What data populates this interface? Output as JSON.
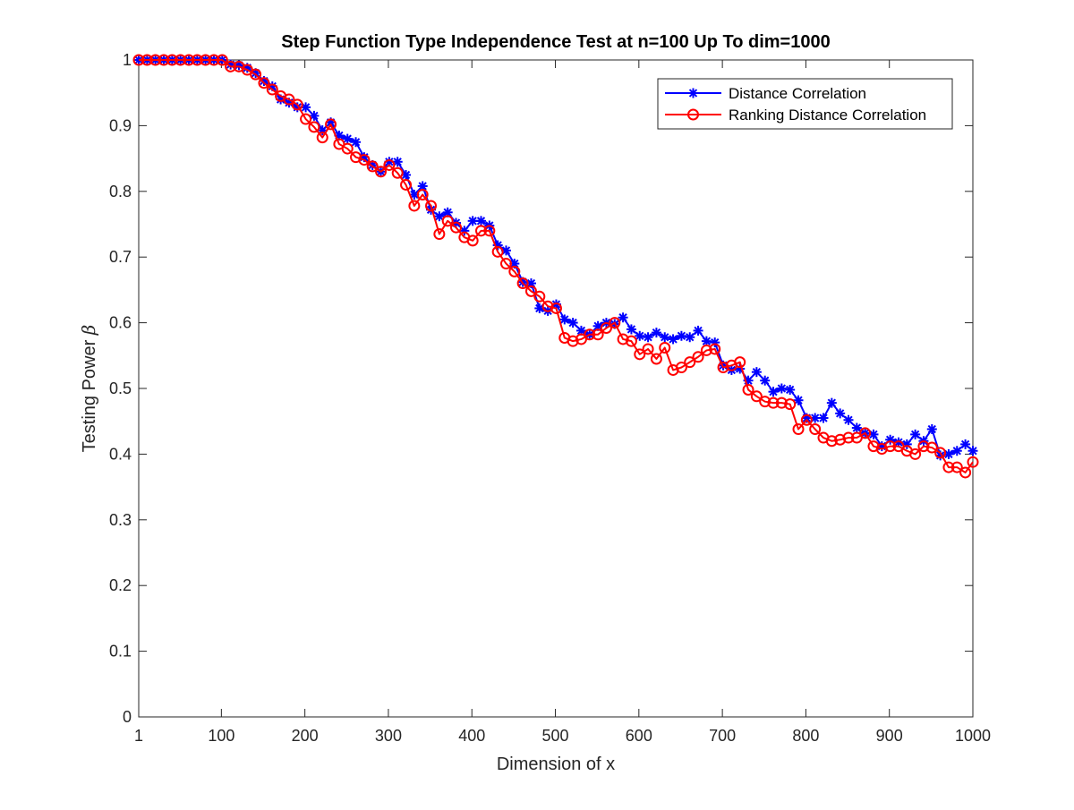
{
  "chart_data": {
    "type": "line",
    "title": "Step Function Type Independence Test at n=100 Up To dim=1000",
    "xlabel": "Dimension of x",
    "ylabel": "Testing Power ",
    "ylabel_symbol": "β",
    "xlim": [
      1,
      1000
    ],
    "ylim": [
      0,
      1
    ],
    "x_ticks": [
      1,
      100,
      200,
      300,
      400,
      500,
      600,
      700,
      800,
      900,
      1000
    ],
    "x_tick_labels": [
      "1",
      "100",
      "200",
      "300",
      "400",
      "500",
      "600",
      "700",
      "800",
      "900",
      "1000"
    ],
    "y_ticks": [
      0,
      0.1,
      0.2,
      0.3,
      0.4,
      0.5,
      0.6,
      0.7,
      0.8,
      0.9,
      1
    ],
    "y_tick_labels": [
      "0",
      "0.1",
      "0.2",
      "0.3",
      "0.4",
      "0.5",
      "0.6",
      "0.7",
      "0.8",
      "0.9",
      "1"
    ],
    "grid": false,
    "legend_position": "top-right",
    "x": [
      1,
      11,
      21,
      31,
      41,
      51,
      61,
      71,
      81,
      91,
      101,
      111,
      121,
      131,
      141,
      151,
      161,
      171,
      181,
      191,
      201,
      211,
      221,
      231,
      241,
      251,
      261,
      271,
      281,
      291,
      301,
      311,
      321,
      331,
      341,
      351,
      361,
      371,
      381,
      391,
      401,
      411,
      421,
      431,
      441,
      451,
      461,
      471,
      481,
      491,
      501,
      511,
      521,
      531,
      541,
      551,
      561,
      571,
      581,
      591,
      601,
      611,
      621,
      631,
      641,
      651,
      661,
      671,
      681,
      691,
      701,
      711,
      721,
      731,
      741,
      751,
      761,
      771,
      781,
      791,
      801,
      811,
      821,
      831,
      841,
      851,
      861,
      871,
      881,
      891,
      901,
      911,
      921,
      931,
      941,
      951,
      961,
      971,
      981,
      991,
      1000
    ],
    "series": [
      {
        "name": "Distance Correlation",
        "color": "#0000ff",
        "marker": "asterisk",
        "values": [
          1,
          1,
          1,
          1,
          1,
          1,
          1,
          1,
          1,
          1,
          1,
          0.993,
          0.992,
          0.988,
          0.98,
          0.968,
          0.96,
          0.94,
          0.935,
          0.928,
          0.928,
          0.915,
          0.893,
          0.905,
          0.885,
          0.88,
          0.875,
          0.852,
          0.84,
          0.83,
          0.845,
          0.845,
          0.825,
          0.795,
          0.808,
          0.772,
          0.762,
          0.768,
          0.752,
          0.74,
          0.755,
          0.755,
          0.748,
          0.718,
          0.71,
          0.69,
          0.662,
          0.66,
          0.622,
          0.618,
          0.628,
          0.605,
          0.6,
          0.588,
          0.582,
          0.595,
          0.6,
          0.598,
          0.608,
          0.59,
          0.58,
          0.578,
          0.585,
          0.578,
          0.575,
          0.58,
          0.578,
          0.588,
          0.572,
          0.57,
          0.535,
          0.528,
          0.53,
          0.512,
          0.525,
          0.512,
          0.495,
          0.5,
          0.498,
          0.482,
          0.455,
          0.455,
          0.455,
          0.478,
          0.462,
          0.452,
          0.44,
          0.432,
          0.43,
          0.412,
          0.422,
          0.418,
          0.415,
          0.43,
          0.42,
          0.438,
          0.398,
          0.4,
          0.405,
          0.415,
          0.405
        ]
      },
      {
        "name": "Ranking Distance Correlation",
        "color": "#ff0000",
        "marker": "circle",
        "values": [
          1,
          1,
          1,
          1,
          1,
          1,
          1,
          1,
          1,
          1,
          1,
          0.99,
          0.99,
          0.985,
          0.978,
          0.965,
          0.955,
          0.945,
          0.94,
          0.932,
          0.91,
          0.898,
          0.882,
          0.902,
          0.872,
          0.865,
          0.852,
          0.848,
          0.838,
          0.83,
          0.84,
          0.828,
          0.81,
          0.778,
          0.795,
          0.778,
          0.735,
          0.755,
          0.745,
          0.73,
          0.725,
          0.74,
          0.74,
          0.708,
          0.69,
          0.678,
          0.66,
          0.648,
          0.64,
          0.625,
          0.622,
          0.577,
          0.572,
          0.575,
          0.582,
          0.582,
          0.592,
          0.6,
          0.575,
          0.572,
          0.552,
          0.56,
          0.545,
          0.562,
          0.528,
          0.532,
          0.54,
          0.548,
          0.558,
          0.56,
          0.532,
          0.535,
          0.54,
          0.498,
          0.488,
          0.48,
          0.478,
          0.478,
          0.476,
          0.438,
          0.452,
          0.438,
          0.425,
          0.42,
          0.422,
          0.425,
          0.425,
          0.432,
          0.412,
          0.408,
          0.412,
          0.412,
          0.405,
          0.4,
          0.412,
          0.41,
          0.402,
          0.38,
          0.38,
          0.372,
          0.388
        ]
      }
    ]
  }
}
